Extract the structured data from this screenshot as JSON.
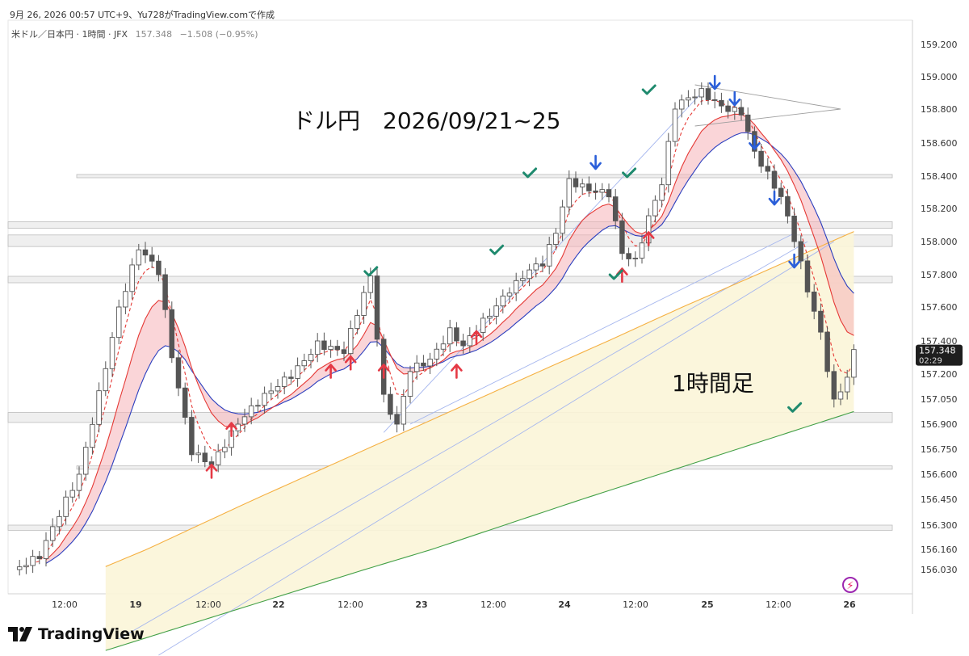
{
  "header": {
    "snapshot_line": "9月 26, 2026 00:57 UTC+9、Yu728がTradingView.comで作成",
    "symbol": "米ドル／日本円 · 1時間 · JFX",
    "last": "157.348",
    "change": "−1.508 (−0.95%)"
  },
  "annotations": {
    "title": "ドル円　2026/09/21~25",
    "timeframe": "1時間足"
  },
  "brand": {
    "name": "TradingView"
  },
  "colors": {
    "candle": "#555555",
    "ma_blue": "#2b3fbf",
    "ma_red": "#e53935",
    "ma_orange": "#f5b042",
    "ma_green": "#43a047",
    "cloud_red": "#f6b3b8",
    "cloud_blue": "#b9d3f0",
    "cloud_yellow": "#fbf5d8",
    "arrow_up": "#e53945",
    "arrow_down": "#2b5fd9",
    "check": "#1f8a6e",
    "badge_bg": "#1e1e1e"
  },
  "chart_data": {
    "type": "candlestick",
    "interval": "1時間",
    "y_axis": {
      "ticks": [
        159.2,
        159.0,
        158.8,
        158.6,
        158.4,
        158.2,
        158.0,
        157.8,
        157.6,
        157.4,
        157.2,
        157.05,
        156.9,
        156.75,
        156.6,
        156.45,
        156.3,
        156.16,
        156.03
      ],
      "tick_labels": [
        "159.200",
        "159.000",
        "158.800",
        "158.600",
        "158.400",
        "158.200",
        "158.000",
        "157.800",
        "157.600",
        "157.400",
        "157.200",
        "157.050",
        "156.900",
        "156.750",
        "156.600",
        "156.450",
        "156.300",
        "156.160",
        "156.030"
      ],
      "last_price_label": "157.348",
      "countdown_label": "02:29"
    },
    "x_axis": {
      "tick_labels": [
        "12:00",
        "19",
        "12:00",
        "22",
        "12:00",
        "23",
        "12:00",
        "24",
        "12:00",
        "25",
        "12:00",
        "26"
      ]
    },
    "price_path": [
      [
        0,
        156.03
      ],
      [
        4,
        156.1
      ],
      [
        10,
        156.6
      ],
      [
        16,
        157.6
      ],
      [
        19,
        157.95
      ],
      [
        22,
        157.8
      ],
      [
        24,
        157.3
      ],
      [
        27,
        156.75
      ],
      [
        30,
        156.68
      ],
      [
        34,
        156.9
      ],
      [
        38,
        157.05
      ],
      [
        42,
        157.2
      ],
      [
        46,
        157.4
      ],
      [
        50,
        157.33
      ],
      [
        52,
        157.55
      ],
      [
        54,
        157.77
      ],
      [
        56,
        157.05
      ],
      [
        58,
        156.9
      ],
      [
        60,
        157.25
      ],
      [
        63,
        157.3
      ],
      [
        66,
        157.45
      ],
      [
        68,
        157.35
      ],
      [
        72,
        157.55
      ],
      [
        75,
        157.72
      ],
      [
        78,
        157.85
      ],
      [
        80,
        157.88
      ],
      [
        82,
        158.05
      ],
      [
        84,
        158.35
      ],
      [
        87,
        158.3
      ],
      [
        90,
        158.3
      ],
      [
        92,
        157.95
      ],
      [
        94,
        157.9
      ],
      [
        96,
        158.15
      ],
      [
        98,
        158.35
      ],
      [
        100,
        158.8
      ],
      [
        102,
        158.85
      ],
      [
        104,
        158.9
      ],
      [
        107,
        158.83
      ],
      [
        110,
        158.8
      ],
      [
        112,
        158.55
      ],
      [
        114,
        158.4
      ],
      [
        116,
        158.25
      ],
      [
        118,
        158.0
      ],
      [
        120,
        157.7
      ],
      [
        122,
        157.45
      ],
      [
        124,
        157.05
      ],
      [
        126,
        157.2
      ],
      [
        127,
        157.348
      ]
    ],
    "moving_averages": [
      {
        "color": "red",
        "style": "dashed"
      },
      {
        "color": "red"
      },
      {
        "color": "blue"
      },
      {
        "color": "orange"
      },
      {
        "color": "green"
      }
    ],
    "markers": {
      "up_arrows": [
        [
          30,
          156.7
        ],
        [
          33,
          156.95
        ],
        [
          48,
          157.3
        ],
        [
          51,
          157.35
        ],
        [
          56,
          157.3
        ],
        [
          67,
          157.3
        ],
        [
          70,
          157.5
        ],
        [
          92,
          157.88
        ],
        [
          96,
          158.1
        ]
      ],
      "down_arrows": [
        [
          88,
          158.4
        ],
        [
          106,
          158.88
        ],
        [
          109,
          158.78
        ],
        [
          112,
          158.52
        ],
        [
          115,
          158.18
        ],
        [
          118,
          157.8
        ]
      ],
      "checks": [
        [
          54,
          157.82
        ],
        [
          73,
          157.95
        ],
        [
          78,
          158.42
        ],
        [
          91,
          157.8
        ],
        [
          93,
          158.42
        ],
        [
          96,
          158.92
        ],
        [
          118,
          157.0
        ]
      ]
    },
    "horizontal_zones": [
      [
        157.97,
        158.04
      ],
      [
        157.75,
        157.79
      ],
      [
        158.08,
        158.12
      ],
      [
        158.39,
        158.41
      ],
      [
        156.91,
        156.97
      ],
      [
        156.63,
        156.65
      ],
      [
        156.27,
        156.3
      ]
    ]
  }
}
